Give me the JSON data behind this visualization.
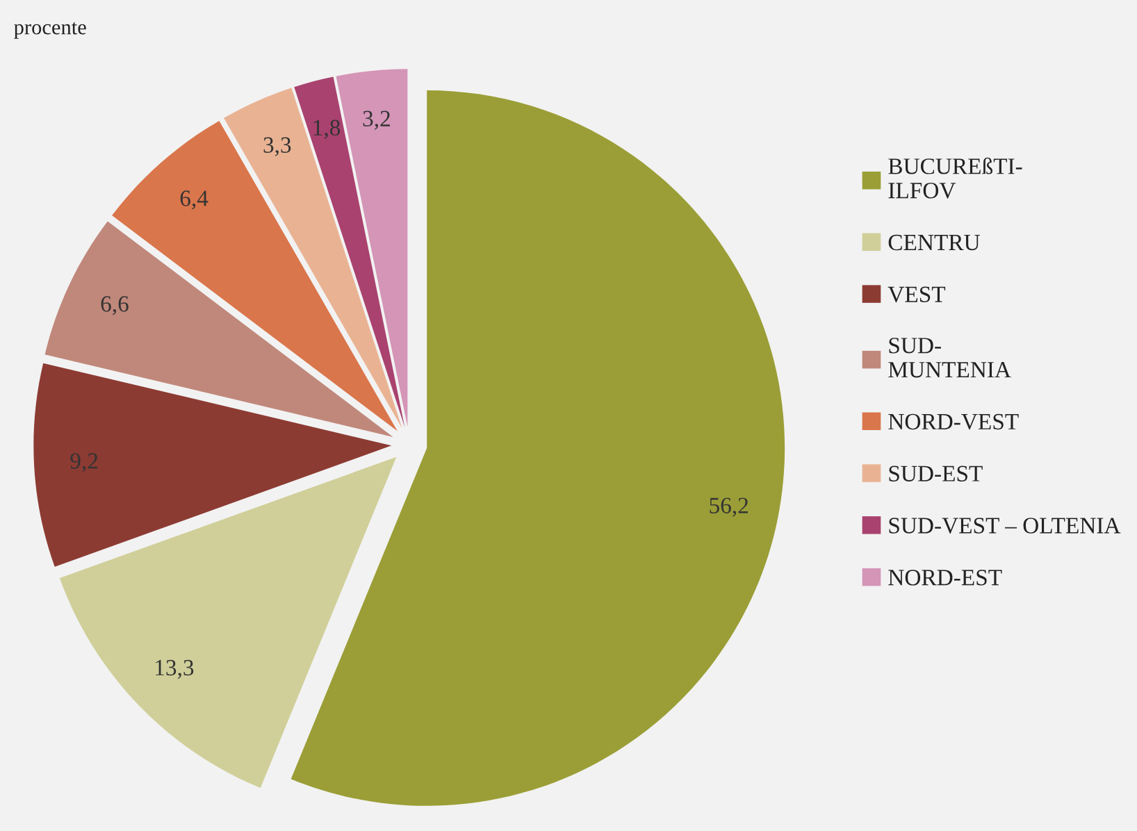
{
  "chart_data": {
    "type": "pie",
    "title": "procente",
    "categories": [
      "BUCUREßTI-\nILFOV",
      "CENTRU",
      "VEST",
      "SUD-\nMUNTENIA",
      "NORD-VEST",
      "SUD-EST",
      "SUD-VEST – OLTENIA",
      "NORD-EST"
    ],
    "values": [
      56.2,
      13.3,
      9.2,
      6.6,
      6.4,
      3.3,
      1.8,
      3.2
    ],
    "value_labels": [
      "56,2",
      "13,3",
      "9,2",
      "6,6",
      "6,4",
      "3,3",
      "1,8",
      "3,2"
    ],
    "colors": [
      "#9b9e36",
      "#d0cf99",
      "#8c3b33",
      "#c0887b",
      "#da764b",
      "#e9b393",
      "#a9426f",
      "#d495b7"
    ],
    "legend": "right"
  }
}
